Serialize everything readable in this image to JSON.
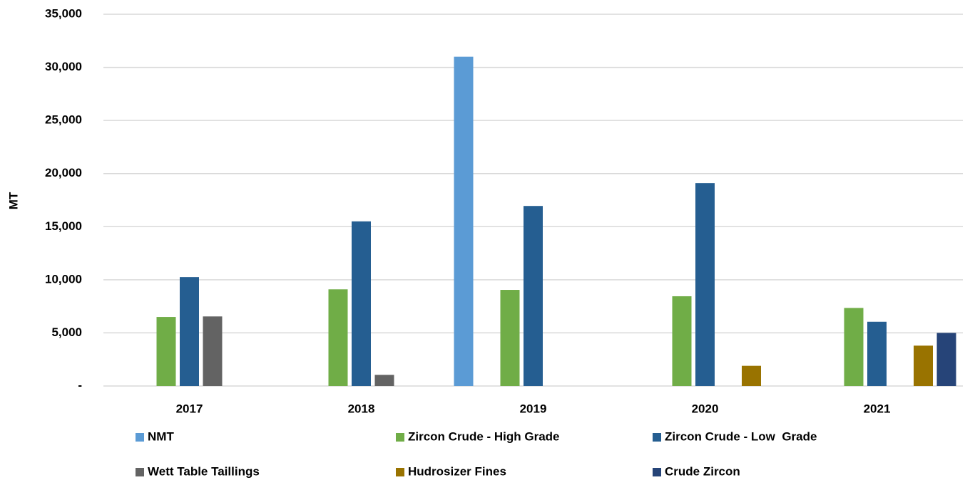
{
  "chart_data": {
    "type": "bar",
    "y_label": "MT",
    "categories": [
      "2017",
      "2018",
      "2019",
      "2020",
      "2021"
    ],
    "series": [
      {
        "name": "NMT",
        "color": "#5b9bd5",
        "values": [
          null,
          null,
          31000,
          null,
          null
        ]
      },
      {
        "name": "Zircon Crude - High Grade",
        "color": "#70ad47",
        "values": [
          6500,
          9100,
          9050,
          8450,
          7350
        ]
      },
      {
        "name": "Zircon Crude - Low  Grade",
        "color": "#255e91",
        "values": [
          10250,
          15500,
          16950,
          19100,
          6050
        ]
      },
      {
        "name": "Wett Table Taillings",
        "color": "#636363",
        "values": [
          6550,
          1050,
          null,
          null,
          null
        ]
      },
      {
        "name": "Hudrosizer Fines",
        "color": "#997300",
        "values": [
          null,
          null,
          null,
          1900,
          3800
        ]
      },
      {
        "name": "Crude Zircon",
        "color": "#264478",
        "values": [
          null,
          null,
          null,
          null,
          5000
        ]
      }
    ],
    "ylim": [
      0,
      35000
    ],
    "yticks": [
      {
        "value": 0,
        "label": "-"
      },
      {
        "value": 5000,
        "label": "5,000"
      },
      {
        "value": 10000,
        "label": "10,000"
      },
      {
        "value": 15000,
        "label": "15,000"
      },
      {
        "value": 20000,
        "label": "20,000"
      },
      {
        "value": 25000,
        "label": "25,000"
      },
      {
        "value": 30000,
        "label": "30,000"
      },
      {
        "value": 35000,
        "label": "35,000"
      }
    ],
    "grid": true,
    "legend": "bottom"
  }
}
